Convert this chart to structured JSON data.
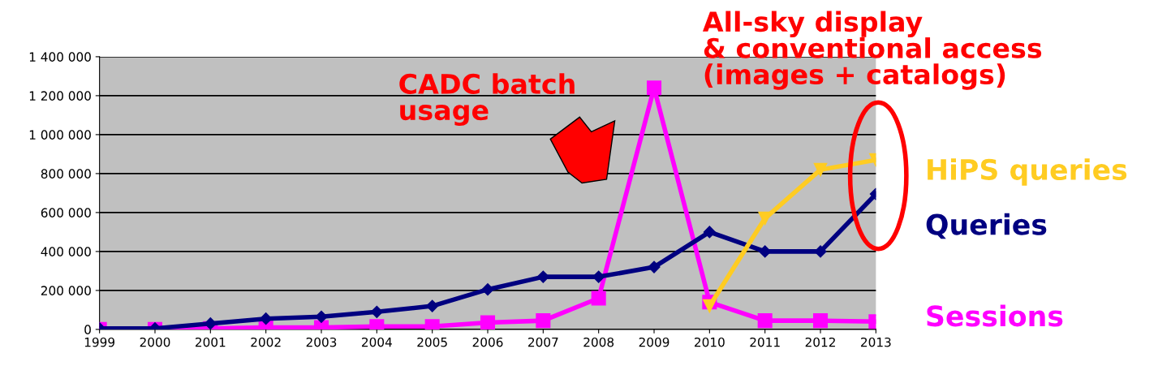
{
  "chart_data": {
    "type": "line",
    "categories": [
      "1999",
      "2000",
      "2001",
      "2002",
      "2003",
      "2004",
      "2005",
      "2006",
      "2007",
      "2008",
      "2009",
      "2010",
      "2011",
      "2012",
      "2013"
    ],
    "series": [
      {
        "name": "HiPS queries",
        "color": "#ffcc22",
        "marker": "triangle",
        "values": [
          null,
          null,
          null,
          null,
          null,
          null,
          null,
          null,
          null,
          null,
          null,
          120000,
          570000,
          820000,
          870000
        ]
      },
      {
        "name": "Queries",
        "color": "#000080",
        "marker": "diamond",
        "values": [
          5000,
          5000,
          30000,
          55000,
          65000,
          90000,
          120000,
          205000,
          270000,
          270000,
          320000,
          500000,
          400000,
          400000,
          695000
        ]
      },
      {
        "name": "Sessions",
        "color": "#ff00ff",
        "marker": "square",
        "values": [
          0,
          0,
          5000,
          10000,
          10000,
          15000,
          15000,
          35000,
          45000,
          160000,
          1240000,
          140000,
          45000,
          45000,
          40000
        ]
      }
    ],
    "ylim": [
      0,
      1400000
    ],
    "yticks": [
      {
        "value": 0,
        "label": "0"
      },
      {
        "value": 200000,
        "label": "200 000"
      },
      {
        "value": 400000,
        "label": "400 000"
      },
      {
        "value": 600000,
        "label": "600 000"
      },
      {
        "value": 800000,
        "label": "800 000"
      },
      {
        "value": 1000000,
        "label": "1 000 000"
      },
      {
        "value": 1200000,
        "label": "1 200 000"
      },
      {
        "value": 1400000,
        "label": "1 400 000"
      }
    ],
    "grid": "y",
    "line_style": "solid",
    "annotations": [
      "CADC batch\nusage",
      "All-sky display\n& conventional access\n(images + catalogs)"
    ]
  }
}
